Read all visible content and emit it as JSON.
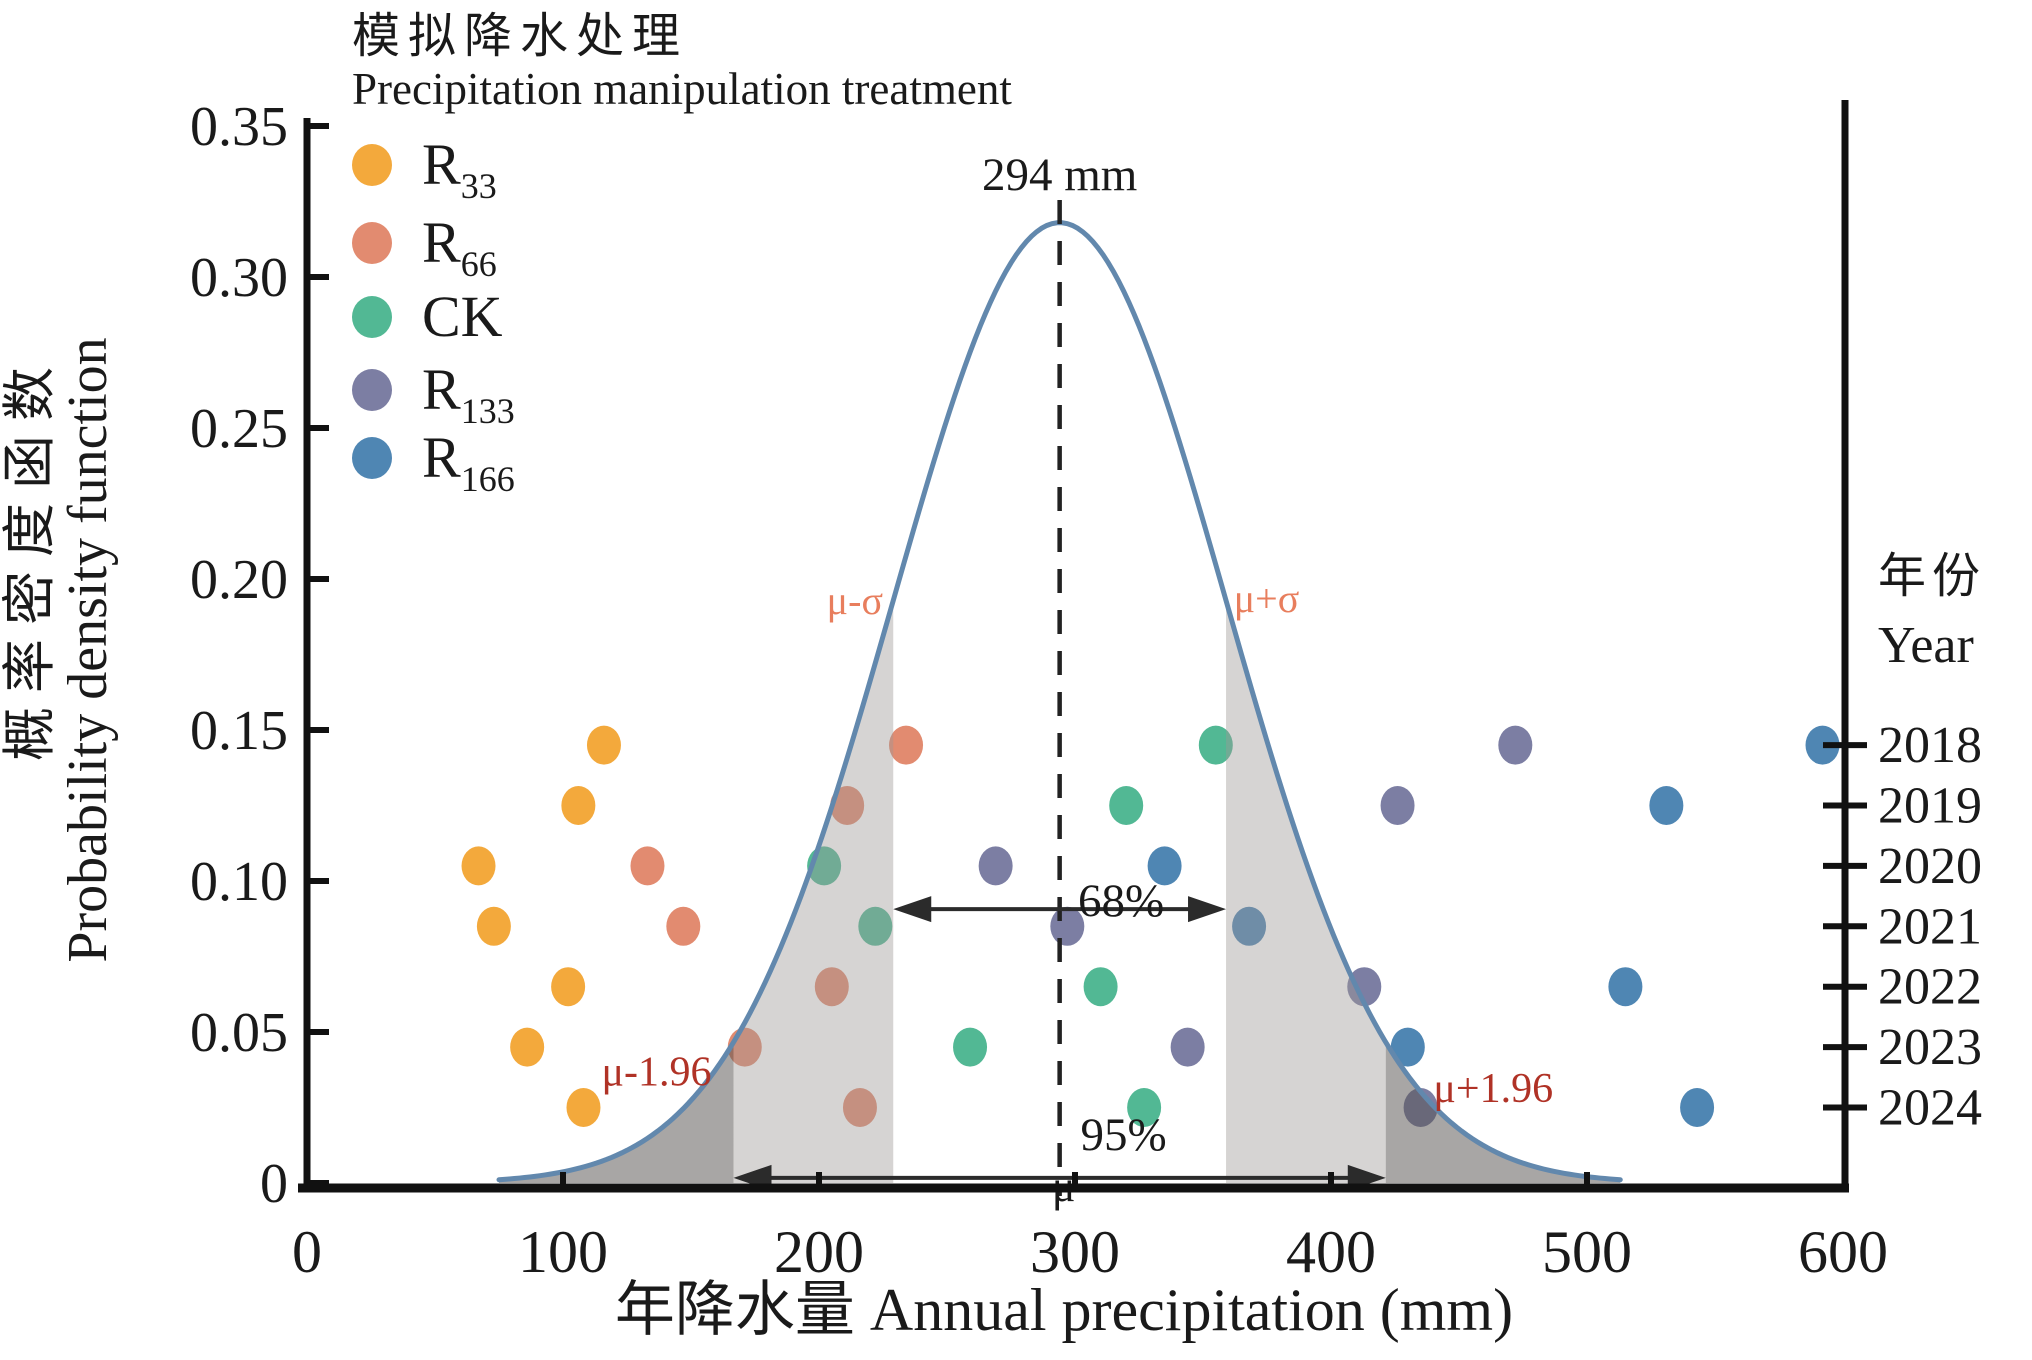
{
  "figure": {
    "legend_title_zh": "模拟降水处理",
    "legend_title_en": "Precipitation manipulation treatment",
    "ylabel_zh": "概率密度函数",
    "ylabel_en": "Probability density function",
    "xlabel": "年降水量 Annual precipitation (mm)",
    "right_axis_title_zh": "年份",
    "right_axis_title_en": "Year"
  },
  "colors": {
    "R33": "#F3A93C",
    "R66": "#E28B70",
    "CK": "#52B894",
    "R133": "#7C7EA3",
    "R166": "#4F86B3",
    "curve": "#6288AD",
    "band_light": "rgba(158,153,150,0.42)",
    "band_dark": "rgba(88,85,83,0.52)",
    "sigma_label": "#E87E5D",
    "sigma196_label": "#B03226",
    "axis": "#111111",
    "text": "#1a1a1a"
  },
  "chart_data": {
    "type": "scatter",
    "title": "模拟降水处理 Precipitation manipulation treatment",
    "xlabel": "年降水量 Annual precipitation (mm)",
    "ylabel": "概率密度函数 Probability density function",
    "xlim": [
      0,
      600
    ],
    "ylim": [
      0,
      0.35
    ],
    "grid": false,
    "legend_position": "upper-left",
    "x_ticks": [
      {
        "v": 0,
        "label": "0"
      },
      {
        "v": 100,
        "label": "100"
      },
      {
        "v": 200,
        "label": "200"
      },
      {
        "v": 300,
        "label": "300"
      },
      {
        "v": 400,
        "label": "400"
      },
      {
        "v": 500,
        "label": "500"
      },
      {
        "v": 600,
        "label": "600"
      }
    ],
    "y_ticks": [
      {
        "v": 0.35,
        "label": "0.35"
      },
      {
        "v": 0.3,
        "label": "0.30"
      },
      {
        "v": 0.25,
        "label": "0.25"
      },
      {
        "v": 0.2,
        "label": "0.20"
      },
      {
        "v": 0.15,
        "label": "0.15"
      },
      {
        "v": 0.1,
        "label": "0.10"
      },
      {
        "v": 0.05,
        "label": "0.05"
      },
      {
        "v": 0,
        "label": "0"
      }
    ],
    "years": [
      {
        "label": "2018",
        "pdf_level": 0.145
      },
      {
        "label": "2019",
        "pdf_level": 0.125
      },
      {
        "label": "2020",
        "pdf_level": 0.105
      },
      {
        "label": "2021",
        "pdf_level": 0.085
      },
      {
        "label": "2022",
        "pdf_level": 0.065
      },
      {
        "label": "2023",
        "pdf_level": 0.045
      },
      {
        "label": "2024",
        "pdf_level": 0.025
      }
    ],
    "series": [
      {
        "name": "R33",
        "label_main": "R",
        "label_sub": "33",
        "color": "#F3A93C",
        "annual_precip_mm": [
          116,
          106,
          67,
          73,
          102,
          86,
          108
        ]
      },
      {
        "name": "R66",
        "label_main": "R",
        "label_sub": "66",
        "color": "#E28B70",
        "annual_precip_mm": [
          234,
          211,
          133,
          147,
          205,
          171,
          216
        ]
      },
      {
        "name": "CK",
        "label_main": "CK",
        "label_sub": "",
        "color": "#52B894",
        "annual_precip_mm": [
          355,
          320,
          202,
          222,
          310,
          259,
          327
        ]
      },
      {
        "name": "R133",
        "label_main": "R",
        "label_sub": "133",
        "color": "#7C7EA3",
        "annual_precip_mm": [
          472,
          426,
          269,
          297,
          413,
          344,
          435
        ]
      },
      {
        "name": "R166",
        "label_main": "R",
        "label_sub": "166",
        "color": "#4F86B3",
        "annual_precip_mm": [
          592,
          531,
          335,
          368,
          515,
          430,
          543
        ]
      }
    ],
    "normal_curve": {
      "mu_mm": 294,
      "sigma_mm": 65,
      "peak_pdf": 0.318,
      "draw_range_mm": [
        75,
        513
      ]
    },
    "bands": {
      "one_sigma_mm": [
        229,
        359
      ],
      "sigma_196_mm": [
        166.6,
        421.4
      ]
    },
    "annotations": {
      "peak_label": {
        "text": "294 mm",
        "mm": 294
      },
      "mu_bottom_label": {
        "text": "μ",
        "mm": 294
      },
      "mu_minus_sigma": {
        "text": "μ-σ",
        "mm": 225,
        "pdf": 0.193,
        "anchor": "end"
      },
      "mu_plus_sigma": {
        "text": "μ+σ",
        "mm": 362,
        "pdf": 0.193,
        "anchor": "start"
      },
      "mu_minus_196": {
        "text": "μ-1.96",
        "mm": 158,
        "pdf": 0.037,
        "anchor": "end"
      },
      "mu_plus_196": {
        "text": "μ+1.96",
        "mm": 440,
        "pdf": 0.0315,
        "anchor": "start"
      },
      "pct68": {
        "text": "68%",
        "mm": 318,
        "pdf": 0.093,
        "arrow_from_mm": 229,
        "arrow_to_mm": 359,
        "arrow_pdf": 0.0907
      },
      "pct95": {
        "text": "95%",
        "mm": 319,
        "pdf": 0.0156,
        "arrow_from_mm": 166.6,
        "arrow_to_mm": 421.4,
        "arrow_pdf": 0.0017
      }
    }
  }
}
